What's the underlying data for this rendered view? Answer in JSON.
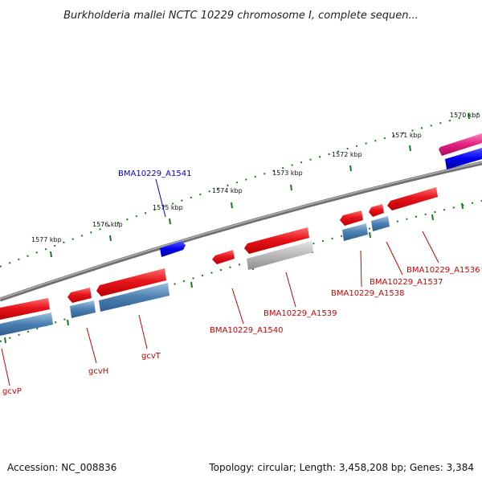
{
  "title": "Burkholderia mallei NCTC 10229 chromosome I, complete sequen...",
  "accession_text": "Accession: NC_008836",
  "summary_text": "Topology: circular; Length: 3,458,208 bp; Genes: 3,384",
  "kbp_labels": [
    "1570 kbp",
    "1571 kbp",
    "1572 kbp",
    "1573 kbp",
    "1574 kbp",
    "1575 kbp",
    "1576 kbp",
    "1577 kbp"
  ],
  "gene_labels": [
    {
      "text": "BMA10229_A1541",
      "color": "#0000cc"
    },
    {
      "text": "BMA10229_A1540",
      "color": "#cc0000"
    },
    {
      "text": "BMA10229_A1539",
      "color": "#cc0000"
    },
    {
      "text": "BMA10229_A1538",
      "color": "#cc0000"
    },
    {
      "text": "BMA10229_A1537",
      "color": "#cc0000"
    },
    {
      "text": "BMA10229_A1536",
      "color": "#cc0000"
    },
    {
      "text": "gcvT",
      "color": "#cc0000"
    },
    {
      "text": "gcvH",
      "color": "#cc0000"
    },
    {
      "text": "gcvP",
      "color": "#cc0000"
    }
  ],
  "colors": {
    "cds_red": "#e8141c",
    "cds_blue": "#4a7fb0",
    "cds_gray": "#b8b8b8",
    "cds_dark_blue": "#0000ee",
    "cds_pink": "#e0207c",
    "backbone": "#808080",
    "tick_green": "#1a7a1a"
  }
}
